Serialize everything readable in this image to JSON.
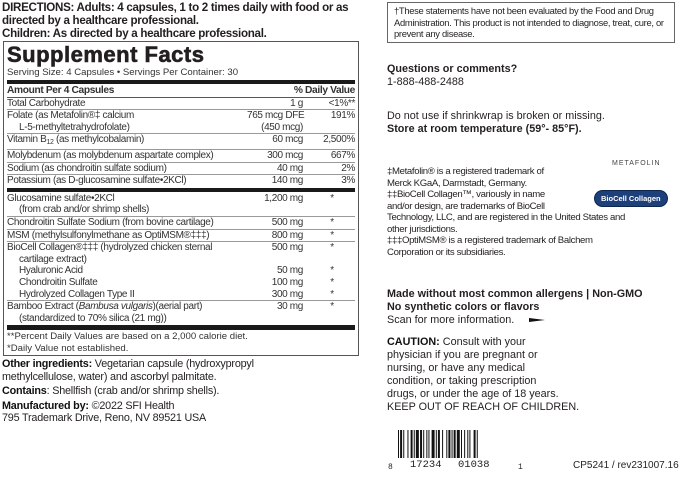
{
  "directions": {
    "line1": "DIRECTIONS: Adults: 4 capsules, 1 to 2 times daily with food or as",
    "line2": "directed by a healthcare professional.",
    "line3": "Children: As directed by a healthcare professional."
  },
  "facts": {
    "title": "Supplement Facts",
    "serving": "Serving Size: 4 Capsules • Servings Per Container: 30",
    "header_amount": "Amount Per 4 Capsules",
    "header_dv": "% Daily Value",
    "rows_a": [
      {
        "name": "Total Carbohydrate",
        "amount": "1 g",
        "dv": "<1%**"
      },
      {
        "name": "Folate (as Metafolin®‡ calcium",
        "name2": "L-5-methyltetrahydrofolate)",
        "amount": "765 mcg DFE",
        "amount2": "(450 mcg)",
        "dv": "191%"
      },
      {
        "name": "Vitamin B",
        "sub": "12",
        "name_rest": " (as methylcobalamin)",
        "amount": "60 mcg",
        "dv": "2,500%"
      },
      {
        "name": "Molybdenum (as molybdenum aspartate complex)",
        "amount": "300 mcg",
        "dv": "667%"
      },
      {
        "name": "Sodium (as chondroitin sulfate sodium)",
        "amount": "40 mg",
        "dv": "2%"
      },
      {
        "name": "Potassium (as D-glucosamine sulfate•2KCl)",
        "amount": "140 mg",
        "dv": "3%"
      }
    ],
    "rows_b": [
      {
        "name": "Glucosamine sulfate•2KCl",
        "name2": "(from crab and/or shrimp shells)",
        "amount": "1,200 mg",
        "dv": "*"
      },
      {
        "name": "Chondroitin Sulfate Sodium (from bovine cartilage)",
        "amount": "500 mg",
        "dv": "*"
      },
      {
        "name": "MSM (methylsulfonylmethane as OptiMSM®‡‡‡)",
        "amount": "800 mg",
        "dv": "*"
      },
      {
        "name": "BioCell Collagen®‡‡‡ (hydrolyzed chicken sternal",
        "name2": "cartilage extract)",
        "amount": "500 mg",
        "dv": "*"
      },
      {
        "name": "Hyaluronic Acid",
        "amount": "50 mg",
        "dv": "*"
      },
      {
        "name": "Chondroitin Sulfate",
        "amount": "100 mg",
        "dv": "*"
      },
      {
        "name": "Hydrolyzed Collagen Type II",
        "amount": "300 mg",
        "dv": "*"
      },
      {
        "name": "Bamboo Extract (",
        "name_italic": "Bambusa vulgaris",
        "name_rest": ")(aerial part)",
        "name2": "(standardized to 70% silica (21 mg))",
        "amount": "30 mg",
        "dv": "*"
      }
    ],
    "footnote1": "**Percent Daily Values are based on a 2,000 calorie diet.",
    "footnote2": "*Daily Value not established."
  },
  "other": {
    "label": "Other ingredients:",
    "text": " Vegetarian capsule (hydroxypropyl",
    "text2": "methylcellulose, water) and ascorbyl palmitate.",
    "contains_label": "Contains",
    "contains_text": ": Shellfish (crab and/or shrimp shells).",
    "mfg_label": "Manufactured by:",
    "mfg_text": " ©2022 SFI Health",
    "address": "795 Trademark Drive, Reno, NV 89521 USA"
  },
  "right": {
    "disclaimer": "†These statements have not been evaluated by the Food and Drug Administration. This product is not intended to diagnose, treat, cure, or prevent any disease.",
    "questions": "Questions or comments?",
    "phone": "1-888-488-2488",
    "shrinkwrap": "Do not use if shrinkwrap is broken or missing.",
    "storage": "Store at room temperature (59°- 85°F).",
    "tm1": "‡Metafolin® is a registered trademark of",
    "tm1b": "Merck KGaA, Darmstadt, Germany.",
    "tm2": "‡‡BioCell Collagen™, variously in name",
    "tm2b": "and/or design, are trademarks of BioCell",
    "tm2c": "Technology, LLC, and are registered in the United States and",
    "tm2d": "other jurisdictions.",
    "tm3": "‡‡‡OptiMSM® is a registered trademark of Balchem",
    "tm3b": "Corporation or its subsidiaries.",
    "logo_metafolin": "METAFOLIN",
    "logo_biocell": "BioCell Collagen",
    "allergens": "Made without most common allergens | Non-GMO",
    "synthetic": "No synthetic colors or flavors",
    "scan": "Scan for more information.",
    "caution_label": "CAUTION:",
    "caution": [
      " Consult with your",
      "physician if you are pregnant or",
      "nursing, or have any medical",
      "condition, or taking prescription",
      "drugs, or under the age of 18 years."
    ],
    "keep_out": "KEEP OUT OF REACH OF CHILDREN.",
    "barcode": {
      "d1": "8",
      "d2": "17234",
      "d3": "01038",
      "d4": "1"
    },
    "code": "CP5241 / rev231007.16"
  }
}
